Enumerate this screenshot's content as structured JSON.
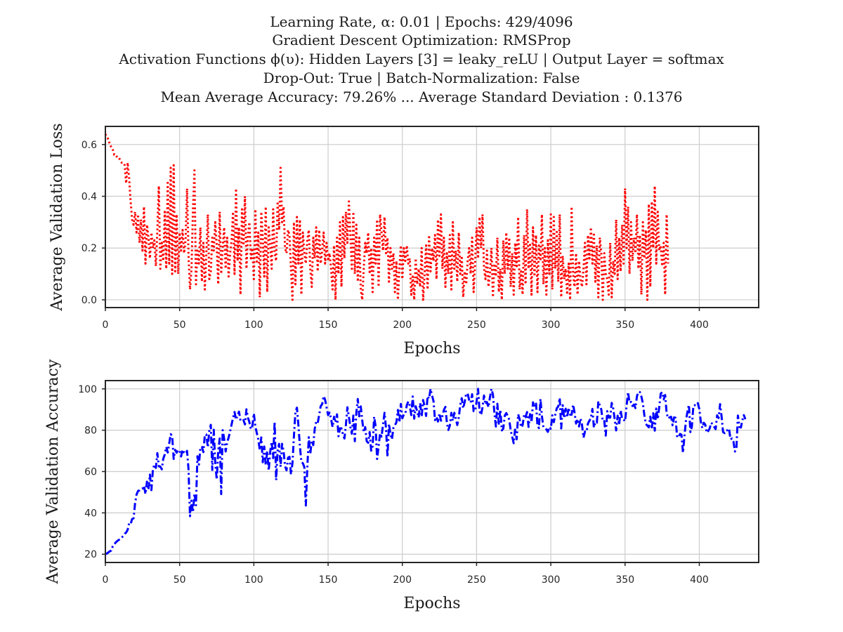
{
  "figure": {
    "title_lines": [
      "Learning Rate, α: 0.01 | Epochs: 429/4096",
      "Gradient Descent Optimization: RMSProp",
      "Activation Functions ϕ(υ): Hidden Layers [3] = leaky_reLU | Output Layer = softmax",
      "Drop-Out: True | Batch-Normalization: False",
      "Mean Average Accuracy: 79.26% ... Average Standard Deviation : 0.1376"
    ]
  },
  "chart_data": [
    {
      "type": "line",
      "xlabel": "Epochs",
      "ylabel": "Average Validation Loss",
      "xlim": [
        0,
        440
      ],
      "ylim": [
        -0.03,
        0.67
      ],
      "xticks": [
        0,
        50,
        100,
        150,
        200,
        250,
        300,
        350,
        400
      ],
      "yticks": [
        0.0,
        0.2,
        0.4,
        0.6
      ],
      "ytick_labels": [
        "0.0",
        "0.2",
        "0.4",
        "0.6"
      ],
      "grid": true,
      "series": [
        {
          "color": "#ff0000",
          "linestyle": "dotted",
          "x_start": 0,
          "x_step": 1,
          "values": [
            0.64,
            0.63,
            0.62,
            0.6,
            0.59,
            0.58,
            0.56,
            0.56,
            0.55,
            0.55,
            0.54,
            0.53,
            0.53,
            0.52,
            0.45,
            0.53,
            0.47,
            0.38,
            0.31,
            0.29,
            0.34,
            0.26,
            0.33,
            0.22,
            0.31,
            0.19,
            0.36,
            0.14,
            0.29,
            0.24,
            0.16,
            0.26,
            0.2,
            0.23,
            0.13,
            0.27,
            0.44,
            0.12,
            0.22,
            0.15,
            0.34,
            0.12,
            0.46,
            0.14,
            0.51,
            0.1,
            0.52,
            0.11,
            0.33,
            0.1,
            0.26,
            0.19,
            0.27,
            0.18,
            0.23,
            0.43,
            0.17,
            0.04,
            0.12,
            0.35,
            0.5,
            0.06,
            0.19,
            0.14,
            0.28,
            0.07,
            0.22,
            0.04,
            0.18,
            0.33,
            0.08,
            0.11,
            0.24,
            0.19,
            0.3,
            0.21,
            0.06,
            0.34,
            0.1,
            0.2,
            0.28,
            0.12,
            0.24,
            0.09,
            0.18,
            0.23,
            0.34,
            0.1,
            0.43,
            0.15,
            0.28,
            0.02,
            0.35,
            0.21,
            0.4,
            0.12,
            0.25,
            0.3,
            0.16,
            0.2,
            0.08,
            0.35,
            0.14,
            0.26,
            0.01,
            0.34,
            0.24,
            0.09,
            0.36,
            0.03,
            0.28,
            0.22,
            0.12,
            0.35,
            0.18,
            0.15,
            0.38,
            0.27,
            0.51,
            0.3,
            0.36,
            0.2,
            0.18,
            0.27,
            0.25,
            0.12,
            0.0,
            0.3,
            0.06,
            0.32,
            0.14,
            0.31,
            0.02,
            0.26,
            0.18,
            0.14,
            0.23,
            0.27,
            0.12,
            0.05,
            0.24,
            0.16,
            0.28,
            0.11,
            0.27,
            0.14,
            0.19,
            0.26,
            0.14,
            0.22,
            0.15,
            0.18,
            0.12,
            0.04,
            0.21,
            0.0,
            0.24,
            0.1,
            0.3,
            0.05,
            0.32,
            0.16,
            0.34,
            0.22,
            0.38,
            0.25,
            0.12,
            0.34,
            0.1,
            0.29,
            0.07,
            0.24,
            0.04,
            0.0,
            0.12,
            0.22,
            0.18,
            0.26,
            0.1,
            0.2,
            0.03,
            0.24,
            0.14,
            0.31,
            0.05,
            0.33,
            0.26,
            0.19,
            0.32,
            0.18,
            0.24,
            0.07,
            0.2,
            0.12,
            0.18,
            0.03,
            0.15,
            0.0,
            0.12,
            0.21,
            0.08,
            0.2,
            0.15,
            0.21,
            0.14,
            0.16,
            0.02,
            0.09,
            0.0,
            0.16,
            0.06,
            0.12,
            0.05,
            0.2,
            0.0,
            0.1,
            0.21,
            0.04,
            0.25,
            0.11,
            0.2,
            0.15,
            0.25,
            0.08,
            0.31,
            0.17,
            0.33,
            0.12,
            0.24,
            0.05,
            0.18,
            0.1,
            0.25,
            0.04,
            0.3,
            0.12,
            0.19,
            0.07,
            0.26,
            0.1,
            0.17,
            0.01,
            0.11,
            0.06,
            0.15,
            0.2,
            0.1,
            0.24,
            0.03,
            0.14,
            0.28,
            0.16,
            0.32,
            0.2,
            0.33,
            0.12,
            0.08,
            0.19,
            0.05,
            0.1,
            0.2,
            0.01,
            0.14,
            0.09,
            0.24,
            0.03,
            0.12,
            0.0,
            0.23,
            0.1,
            0.26,
            0.12,
            0.24,
            0.05,
            0.18,
            0.02,
            0.22,
            0.13,
            0.32,
            0.04,
            0.11,
            0.02,
            0.25,
            0.06,
            0.35,
            0.12,
            0.22,
            0.02,
            0.28,
            0.09,
            0.25,
            0.03,
            0.21,
            0.15,
            0.33,
            0.06,
            0.2,
            0.02,
            0.23,
            0.1,
            0.33,
            0.04,
            0.32,
            0.12,
            0.27,
            0.07,
            0.33,
            0.01,
            0.17,
            0.08,
            0.12,
            0.02,
            0.14,
            0.0,
            0.36,
            0.1,
            0.05,
            0.18,
            0.02,
            0.15,
            0.08,
            0.05,
            0.12,
            0.22,
            0.06,
            0.25,
            0.16,
            0.28,
            0.14,
            0.26,
            0.07,
            0.21,
            0.01,
            0.24,
            0.18,
            0.0,
            0.18,
            0.1,
            0.08,
            0.02,
            0.22,
            0.01,
            0.15,
            0.1,
            0.31,
            0.08,
            0.24,
            0.11,
            0.29,
            0.14,
            0.43,
            0.2,
            0.36,
            0.1,
            0.3,
            0.15,
            0.24,
            0.18,
            0.33,
            0.12,
            0.25,
            0.02,
            0.3,
            0.16,
            0.27,
            0.0,
            0.37,
            0.05,
            0.38,
            0.2,
            0.44,
            0.14,
            0.34,
            0.19,
            0.21,
            0.13,
            0.22,
            0.02,
            0.33,
            0.14
          ]
        }
      ]
    },
    {
      "type": "line",
      "xlabel": "Epochs",
      "ylabel": "Average Validation Accuracy",
      "xlim": [
        0,
        440
      ],
      "ylim": [
        16,
        104
      ],
      "xticks": [
        0,
        50,
        100,
        150,
        200,
        250,
        300,
        350,
        400
      ],
      "yticks": [
        20,
        40,
        60,
        80,
        100
      ],
      "ytick_labels": [
        "20",
        "40",
        "60",
        "80",
        "100"
      ],
      "grid": true,
      "series": [
        {
          "color": "#0000ff",
          "linestyle": "dashdot",
          "x_start": 0,
          "x_step": 1,
          "values": [
            20.1,
            20.3,
            20.9,
            21.4,
            21.8,
            23.9,
            24.8,
            25.7,
            26.4,
            26.9,
            27.3,
            28.1,
            28.8,
            29.9,
            30.5,
            31.8,
            35,
            34.6,
            37,
            37.4,
            44.6,
            48.9,
            50.6,
            50.9,
            51.6,
            51.7,
            53.1,
            49.1,
            55.1,
            51.2,
            58.5,
            51,
            60.9,
            63.4,
            61.8,
            68.9,
            62.5,
            62.4,
            61.1,
            66.2,
            68.3,
            71.9,
            69.2,
            73.6,
            78.1,
            77.2,
            66.1,
            70.5,
            69.1,
            70.5,
            70,
            67.3,
            70.6,
            69.2,
            68.6,
            70,
            61.1,
            38.4,
            45.9,
            40.3,
            49.5,
            43.7,
            67.4,
            63.4,
            71.6,
            71.9,
            69.4,
            77.8,
            77.9,
            71.7,
            79.7,
            82.6,
            60.8,
            80.2,
            64,
            56.1,
            69.9,
            76,
            49.1,
            80,
            75.9,
            69.7,
            74.2,
            76.4,
            79.4,
            82.8,
            86,
            88.8,
            85.1,
            87.2,
            89,
            84.6,
            84.4,
            84.9,
            82.8,
            90.1,
            86.1,
            83.9,
            80.5,
            82.1,
            88.1,
            81.9,
            78.6,
            75.5,
            70.4,
            76.5,
            64.5,
            72.1,
            63.1,
            69.9,
            60.4,
            69.6,
            74.4,
            66.5,
            84.2,
            55.8,
            70.1,
            73.4,
            62.3,
            73.4,
            70,
            62.6,
            60.6,
            66.7,
            67.1,
            58.6,
            64,
            77.3,
            88.9,
            90.9,
            82.4,
            72.3,
            64.7,
            64,
            62.2,
            43.6,
            62,
            76.6,
            68.5,
            74.9,
            72.8,
            80.7,
            84.1,
            83.4,
            87.5,
            91.6,
            92.6,
            96.5,
            94.7,
            90.9,
            87.3,
            88.5,
            85.6,
            81.5,
            86.5,
            83.7,
            87.7,
            77.1,
            80.9,
            80.9,
            78,
            76,
            82.6,
            91.1,
            86.5,
            81.6,
            78.3,
            87.1,
            74.7,
            88.3,
            95.1,
            86.7,
            91.5,
            84.7,
            79,
            81.5,
            74.7,
            73.9,
            79.1,
            70.1,
            72.3,
            86.5,
            81.9,
            66.1,
            72.1,
            78.5,
            76.9,
            82.8,
            88.4,
            81.1,
            67,
            83.1,
            78,
            75.6,
            81.2,
            82.4,
            83.8,
            89.8,
            83.8,
            92.7,
            85.8,
            87.6,
            87.9,
            92.1,
            93.9,
            92,
            87.3,
            96.3,
            85.6,
            91.6,
            89.1,
            86.1,
            93.1,
            86.5,
            94.6,
            91.4,
            86.9,
            96.5,
            95.3,
            100,
            96.8,
            94.1,
            84.9,
            86.5,
            84.2,
            88.2,
            84.6,
            87,
            89.8,
            91.3,
            83.6,
            80.1,
            82.3,
            88.4,
            84.6,
            88.4,
            85.7,
            82.5,
            86.1,
            92.2,
            95.5,
            90.6,
            93.7,
            97.7,
            97.7,
            94.6,
            93.3,
            97.4,
            89.2,
            89.2,
            93.8,
            100,
            89.2,
            87.4,
            91.1,
            96.8,
            92.4,
            93.6,
            91.1,
            95.9,
            100,
            97.3,
            88.4,
            81.8,
            92.8,
            82.6,
            90,
            79.9,
            80.8,
            87.1,
            88.3,
            86.9,
            85.1,
            79.8,
            76.8,
            73.7,
            80.8,
            75.6,
            87.7,
            85.3,
            81.4,
            82.4,
            87.4,
            86.3,
            88.8,
            81.6,
            87.8,
            83.8,
            93.5,
            91.2,
            93.4,
            82.3,
            81,
            95.2,
            86.8,
            81.5,
            80.9,
            80.4,
            79.2,
            81.6,
            80.7,
            87.2,
            83.9,
            87.6,
            90.6,
            91.5,
            95.6,
            80.9,
            92.1,
            85.8,
            90.4,
            86.2,
            90.9,
            87.5,
            87.5,
            92.4,
            88.4,
            83.2,
            85.4,
            81.8,
            85.7,
            82.6,
            76.4,
            79.3,
            79.1,
            83.2,
            84.6,
            85.9,
            90.3,
            81.3,
            83.9,
            83.6,
            94,
            92,
            90,
            84.2,
            84.4,
            77.4,
            89.2,
            86.1,
            86.1,
            93.2,
            90.6,
            85.4,
            79.9,
            87,
            82.6,
            89.6,
            85.4,
            85.2,
            84.3,
            91.5,
            98.5,
            93.3,
            93.7,
            91.7,
            92.4,
            90.7,
            96.4,
            98.6,
            98.4,
            96.3,
            93,
            87.2,
            83,
            82.2,
            81.4,
            86.6,
            80.5,
            88.2,
            79.8,
            90.5,
            85.3,
            91.1,
            97.7,
            98.4,
            94.9,
            97,
            88.3,
            85.7,
            86.2,
            86.5,
            82.4,
            86.2,
            86,
            77.2,
            76.4,
            78.2,
            77.8,
            69.1,
            77.3,
            84.5,
            88.9,
            92.3,
            79.1,
            81.7,
            91.8,
            92.1,
            91.9,
            93.1,
            90.3,
            84.3,
            81.1,
            83.6,
            82.7,
            78.8,
            79.6,
            80.9,
            83.6,
            82.9,
            81.6,
            80.5,
            87.2,
            85.9,
            92.6,
            86.7,
            79.1,
            78.6,
            79.9,
            80,
            80.8,
            75.6,
            76,
            74.5,
            69.7,
            71.6,
            87.1,
            81.6,
            81.3,
            84.8,
            87.3,
            85.3
          ]
        }
      ]
    }
  ]
}
